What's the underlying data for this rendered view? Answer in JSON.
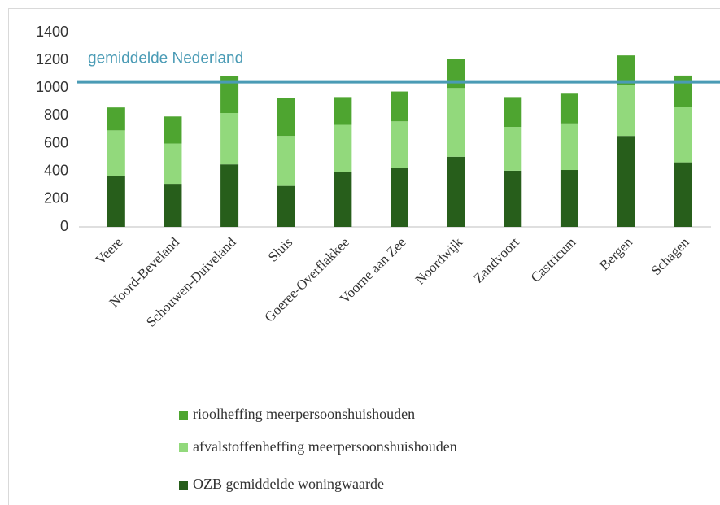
{
  "chart_data": {
    "type": "stacked_bar",
    "categories": [
      "Veere",
      "Noord-Beveland",
      "Schouwen-Duiveland",
      "Sluis",
      "Goeree-Overflakkee",
      "Voorne aan Zee",
      "Noordwijk",
      "Zandvoort",
      "Castricum",
      "Bergen",
      "Schagen"
    ],
    "series": [
      {
        "name": "OZB gemiddelde woningwaarde",
        "color": "#275e1b",
        "values": [
          365,
          310,
          450,
          295,
          395,
          425,
          505,
          405,
          410,
          655,
          465
        ]
      },
      {
        "name": "afvalstoffenheffing meerpersoonshuishouden",
        "color": "#92d97c",
        "values": [
          330,
          290,
          370,
          360,
          340,
          335,
          495,
          315,
          335,
          365,
          400
        ]
      },
      {
        "name": "rioolheffing meerpersoonshuishouden",
        "color": "#4ea530",
        "values": [
          165,
          195,
          265,
          275,
          200,
          215,
          210,
          215,
          220,
          215,
          225
        ]
      }
    ],
    "reference_line": {
      "value": 1045,
      "label": "gemiddelde Nederland",
      "color": "#4a9bb5"
    },
    "ylim": [
      0,
      1400
    ],
    "yticks": [
      0,
      200,
      400,
      600,
      800,
      1000,
      1200,
      1400
    ],
    "grid": false,
    "legend": "bottom"
  }
}
